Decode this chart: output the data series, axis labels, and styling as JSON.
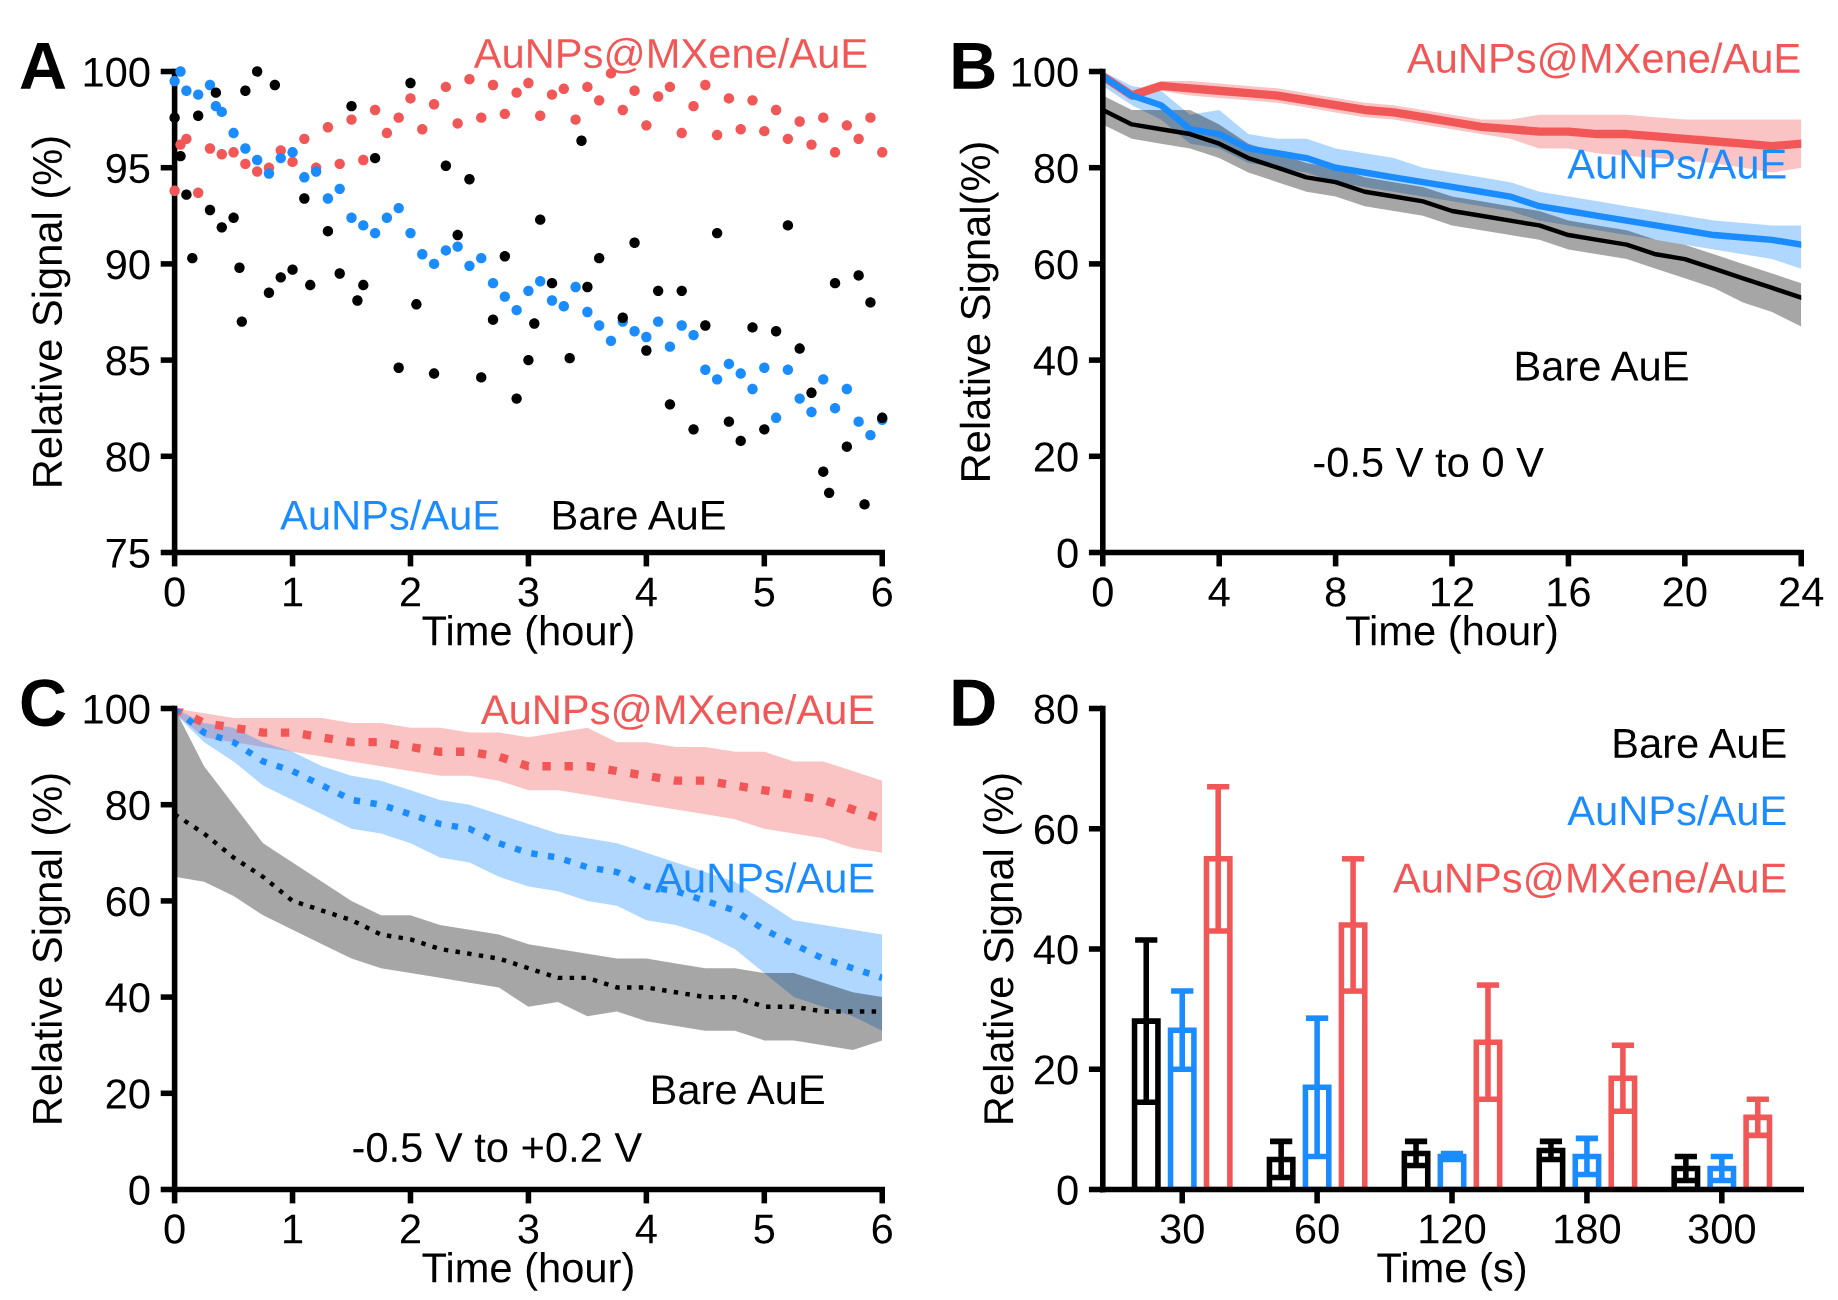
{
  "chart_data": [
    {
      "type": "scatter",
      "title": "A",
      "xlabel": "Time (hour)",
      "ylabel": "Relative Signal (%)",
      "xlim": [
        0,
        6
      ],
      "ylim": [
        75,
        100
      ],
      "xticks": [
        0,
        1,
        2,
        3,
        4,
        5,
        6
      ],
      "yticks": [
        75,
        80,
        85,
        90,
        95,
        100
      ],
      "marker": "circle",
      "grid": false,
      "series": [
        {
          "name": "AuNPs@MXene/AuE",
          "color": "#f25757",
          "x": [
            0.0,
            0.05,
            0.1,
            0.2,
            0.3,
            0.4,
            0.5,
            0.6,
            0.7,
            0.8,
            0.9,
            1.0,
            1.1,
            1.2,
            1.3,
            1.4,
            1.5,
            1.6,
            1.7,
            1.8,
            1.9,
            2.0,
            2.1,
            2.2,
            2.3,
            2.4,
            2.5,
            2.6,
            2.7,
            2.8,
            2.9,
            3.0,
            3.1,
            3.2,
            3.3,
            3.4,
            3.5,
            3.6,
            3.7,
            3.8,
            3.9,
            4.0,
            4.1,
            4.2,
            4.3,
            4.4,
            4.5,
            4.6,
            4.7,
            4.8,
            4.9,
            5.0,
            5.1,
            5.2,
            5.3,
            5.4,
            5.5,
            5.6,
            5.7,
            5.8,
            5.9,
            6.0
          ],
          "values": [
            93.8,
            96.2,
            96.5,
            93.7,
            96.0,
            95.7,
            95.8,
            95.2,
            94.8,
            95.0,
            95.9,
            95.3,
            96.5,
            95.0,
            97.1,
            95.2,
            97.5,
            95.4,
            98.0,
            96.8,
            97.6,
            98.6,
            97.0,
            98.3,
            99.2,
            97.3,
            99.6,
            97.6,
            99.3,
            97.8,
            98.9,
            99.4,
            97.7,
            98.8,
            99.1,
            97.5,
            99.2,
            98.5,
            99.9,
            98.0,
            99.0,
            97.2,
            98.7,
            99.2,
            96.8,
            98.2,
            99.3,
            96.7,
            98.6,
            97.0,
            98.5,
            96.9,
            98.0,
            96.5,
            97.4,
            96.2,
            97.6,
            95.8,
            97.2,
            96.5,
            97.6,
            95.8
          ]
        },
        {
          "name": "AuNPs/AuE",
          "color": "#1a8cff",
          "x": [
            0.0,
            0.05,
            0.1,
            0.2,
            0.3,
            0.35,
            0.4,
            0.5,
            0.6,
            0.7,
            0.8,
            0.9,
            1.0,
            1.1,
            1.2,
            1.3,
            1.4,
            1.5,
            1.6,
            1.7,
            1.8,
            1.9,
            2.0,
            2.1,
            2.2,
            2.3,
            2.4,
            2.5,
            2.6,
            2.7,
            2.8,
            2.9,
            3.0,
            3.1,
            3.2,
            3.3,
            3.4,
            3.5,
            3.6,
            3.7,
            3.8,
            3.9,
            4.0,
            4.1,
            4.2,
            4.3,
            4.4,
            4.5,
            4.6,
            4.7,
            4.8,
            4.9,
            5.0,
            5.1,
            5.2,
            5.3,
            5.4,
            5.5,
            5.6,
            5.7,
            5.8,
            5.9,
            6.0
          ],
          "values": [
            99.5,
            100.0,
            99.0,
            98.8,
            99.3,
            98.2,
            97.9,
            96.8,
            96.0,
            95.4,
            94.7,
            95.5,
            95.8,
            94.5,
            94.8,
            93.4,
            93.9,
            92.4,
            92.0,
            91.6,
            92.4,
            92.9,
            91.6,
            90.5,
            90.0,
            90.7,
            90.9,
            89.9,
            90.3,
            89.0,
            88.3,
            87.6,
            88.6,
            89.1,
            88.1,
            87.8,
            88.8,
            87.5,
            86.8,
            86.0,
            87.0,
            86.5,
            86.2,
            87.0,
            85.7,
            86.8,
            86.3,
            84.5,
            84.0,
            84.8,
            84.3,
            83.5,
            84.6,
            82.0,
            84.5,
            83.0,
            82.3,
            84.0,
            82.5,
            83.5,
            81.8,
            81.1,
            81.9
          ]
        },
        {
          "name": "Bare AuE",
          "color": "#000000",
          "x": [
            0.0,
            0.05,
            0.1,
            0.15,
            0.2,
            0.3,
            0.35,
            0.4,
            0.5,
            0.55,
            0.57,
            0.6,
            0.7,
            0.8,
            0.85,
            0.9,
            1.0,
            1.1,
            1.15,
            1.3,
            1.4,
            1.5,
            1.55,
            1.6,
            1.7,
            1.9,
            2.0,
            2.05,
            2.2,
            2.3,
            2.4,
            2.5,
            2.6,
            2.7,
            2.8,
            2.9,
            3.0,
            3.05,
            3.1,
            3.2,
            3.35,
            3.45,
            3.5,
            3.6,
            3.8,
            3.9,
            4.0,
            4.1,
            4.2,
            4.3,
            4.4,
            4.5,
            4.6,
            4.7,
            4.8,
            4.9,
            5.0,
            5.1,
            5.2,
            5.3,
            5.4,
            5.5,
            5.55,
            5.6,
            5.7,
            5.8,
            5.85,
            5.9,
            6.0
          ],
          "values": [
            97.6,
            95.6,
            93.6,
            90.3,
            97.7,
            92.8,
            98.9,
            91.9,
            92.4,
            89.8,
            87.0,
            99.0,
            100.0,
            88.5,
            99.3,
            89.3,
            89.7,
            93.4,
            88.9,
            91.7,
            89.5,
            98.2,
            88.1,
            88.9,
            95.5,
            84.6,
            99.4,
            87.9,
            84.3,
            95.1,
            91.5,
            94.4,
            84.1,
            87.1,
            90.4,
            83.0,
            85.0,
            86.9,
            92.3,
            89.0,
            85.1,
            96.4,
            88.8,
            90.3,
            87.2,
            91.1,
            85.5,
            88.6,
            82.7,
            88.6,
            81.4,
            86.8,
            91.6,
            81.8,
            80.8,
            86.7,
            81.4,
            86.5,
            92.0,
            85.6,
            83.3,
            79.2,
            78.1,
            89.0,
            80.5,
            89.4,
            77.5,
            88.0,
            82.0
          ]
        }
      ]
    },
    {
      "type": "line",
      "title": "B",
      "xlabel": "Time (hour)",
      "ylabel": "Relative Signal(%)",
      "xlim": [
        0,
        24
      ],
      "ylim": [
        0,
        100
      ],
      "xticks": [
        0,
        4,
        8,
        12,
        16,
        20,
        24
      ],
      "yticks": [
        0,
        20,
        40,
        60,
        80,
        100
      ],
      "line_style": "solid",
      "grid": false,
      "annotations": [
        "-0.5 V to 0 V"
      ],
      "x": [
        0,
        1,
        2,
        3,
        4,
        5,
        6,
        7,
        8,
        9,
        10,
        11,
        12,
        13,
        14,
        15,
        16,
        17,
        18,
        19,
        20,
        21,
        22,
        23,
        24
      ],
      "series": [
        {
          "name": "AuNPs@MXene/AuE",
          "color": "#f25757",
          "values": [
            99,
            95,
            97,
            96.5,
            96,
            95.5,
            95,
            94,
            93,
            92,
            91.5,
            90.5,
            89.5,
            88.5,
            88,
            87.5,
            87.5,
            87,
            87,
            86.5,
            86,
            85.5,
            85,
            84.5,
            85
          ],
          "lower": [
            98,
            94,
            96,
            95,
            94.5,
            94,
            93.5,
            92.5,
            91.5,
            90.5,
            90,
            89,
            88,
            87,
            86,
            84,
            84,
            83,
            82.5,
            82,
            81.5,
            81,
            80,
            79,
            80
          ],
          "upper": [
            100,
            96,
            98,
            98,
            97.5,
            97,
            96.5,
            95.5,
            94.5,
            93.5,
            93,
            92,
            91,
            90,
            90,
            91,
            91,
            91,
            91,
            90.5,
            90,
            90,
            90,
            90,
            90
          ]
        },
        {
          "name": "AuNPs/AuE",
          "color": "#1a8cff",
          "values": [
            99,
            95,
            93,
            88,
            87,
            84,
            83,
            82,
            80,
            79,
            78,
            77,
            76,
            75,
            74,
            72,
            71,
            70,
            69,
            68,
            67,
            66,
            65.5,
            65,
            64
          ],
          "lower": [
            97,
            93,
            90,
            85,
            84,
            81,
            80,
            79,
            77,
            76,
            75,
            74,
            73,
            72,
            71,
            69,
            68,
            67,
            66,
            65,
            64,
            63,
            62,
            61,
            59
          ],
          "upper": [
            100,
            97,
            96,
            91,
            92,
            87,
            86,
            86,
            84,
            83,
            82,
            80,
            79,
            78,
            77,
            75,
            74,
            73,
            72,
            71,
            70,
            69,
            68.5,
            68,
            68
          ]
        },
        {
          "name": "Bare AuE",
          "color": "#000000",
          "values": [
            92,
            89,
            88,
            87,
            85,
            82,
            80,
            78,
            77,
            75,
            74,
            73,
            71,
            70,
            69,
            68,
            66,
            65,
            64,
            62,
            61,
            59,
            57,
            55,
            53
          ],
          "lower": [
            89,
            86,
            85,
            84,
            82,
            79,
            77,
            75,
            74,
            72,
            71,
            70,
            68,
            67,
            66,
            65,
            63,
            62,
            61,
            59,
            57,
            55,
            52,
            50,
            47
          ],
          "upper": [
            95,
            92,
            92,
            92,
            89,
            85,
            83,
            81,
            80,
            78,
            77,
            76,
            74,
            73,
            72,
            71,
            69,
            68,
            67,
            65,
            64,
            62,
            60,
            58,
            56
          ]
        }
      ]
    },
    {
      "type": "line",
      "title": "C",
      "xlabel": "Time (hour)",
      "ylabel": "Relative Signal (%)",
      "xlim": [
        0,
        6
      ],
      "ylim": [
        0,
        100
      ],
      "xticks": [
        0,
        1,
        2,
        3,
        4,
        5,
        6
      ],
      "yticks": [
        0,
        20,
        40,
        60,
        80,
        100
      ],
      "line_style": "dotted",
      "grid": false,
      "annotations": [
        "-0.5 V to +0.2 V"
      ],
      "x": [
        0,
        0.25,
        0.5,
        0.75,
        1,
        1.25,
        1.5,
        1.75,
        2,
        2.25,
        2.5,
        2.75,
        3,
        3.25,
        3.5,
        3.75,
        4,
        4.25,
        4.5,
        4.75,
        5,
        5.25,
        5.5,
        5.75,
        6
      ],
      "series": [
        {
          "name": "AuNPs@MXene/AuE",
          "color": "#f25757",
          "values": [
            100,
            97,
            96,
            95,
            95,
            94,
            93,
            93,
            92,
            91,
            91,
            90,
            88,
            88,
            88,
            87,
            86,
            85,
            85,
            84,
            83,
            82,
            81,
            79,
            77
          ],
          "lower": [
            99,
            94,
            93,
            92,
            91,
            90,
            89,
            88,
            87,
            86,
            86,
            85,
            83,
            83,
            82,
            81,
            80,
            79,
            78,
            77,
            75,
            74,
            73,
            71,
            70
          ],
          "upper": [
            100,
            99,
            98,
            98,
            98,
            98,
            97,
            97,
            96,
            96,
            95,
            95,
            94,
            95,
            96,
            93,
            93,
            92,
            92,
            91,
            91,
            89,
            89,
            87,
            85
          ]
        },
        {
          "name": "AuNPs/AuE",
          "color": "#1a8cff",
          "values": [
            100,
            95,
            93,
            89,
            87,
            84,
            81,
            80,
            78,
            76,
            75,
            72,
            70,
            69,
            67,
            66,
            63,
            62,
            60,
            58,
            54,
            51,
            48,
            46,
            44
          ],
          "lower": [
            99,
            93,
            89,
            84,
            81,
            78,
            75,
            74,
            72,
            69,
            68,
            65,
            63,
            62,
            60,
            59,
            56,
            55,
            53,
            50,
            45,
            40,
            38,
            36,
            33
          ],
          "upper": [
            100,
            97,
            96,
            93,
            91,
            88,
            86,
            85,
            83,
            81,
            80,
            78,
            76,
            74,
            73,
            72,
            70,
            68,
            66,
            64,
            60,
            56,
            55,
            54,
            53
          ]
        },
        {
          "name": "Bare AuE",
          "color": "#000000",
          "values": [
            78,
            74,
            69,
            65,
            60,
            58,
            56,
            53,
            52,
            50,
            49,
            48,
            46,
            44,
            44,
            42,
            42,
            41,
            40,
            40,
            38,
            38,
            37,
            37,
            37
          ],
          "lower": [
            65,
            64,
            61,
            57,
            54,
            51,
            48,
            46,
            45,
            44,
            43,
            42,
            38,
            39,
            36,
            37,
            35,
            34,
            33,
            33,
            31,
            31,
            30,
            29,
            31
          ],
          "upper": [
            100,
            88,
            80,
            72,
            68,
            64,
            60,
            57,
            57,
            55,
            54,
            53,
            51,
            50,
            49,
            48,
            48,
            47,
            46,
            46,
            45,
            45,
            43,
            41,
            40
          ]
        }
      ]
    },
    {
      "type": "bar",
      "title": "D",
      "xlabel": "Time (s)",
      "ylabel": "Relative Signal (%)",
      "ylim": [
        0,
        80
      ],
      "yticks": [
        0,
        20,
        40,
        60,
        80
      ],
      "grid": false,
      "categories": [
        "30",
        "60",
        "120",
        "180",
        "300"
      ],
      "series": [
        {
          "name": "Bare AuE",
          "color": "#000000",
          "values": [
            28,
            5,
            6,
            6.5,
            3.5
          ],
          "errors": [
            13.5,
            3,
            2,
            1.5,
            2
          ]
        },
        {
          "name": "AuNPs/AuE",
          "color": "#1a8cff",
          "values": [
            26.5,
            17,
            5.5,
            5.5,
            3.5
          ],
          "errors": [
            6.5,
            11.5,
            0.5,
            3,
            2
          ]
        },
        {
          "name": "AuNPs@MXene/AuE",
          "color": "#f25757",
          "values": [
            55,
            44,
            24.5,
            18.5,
            12
          ],
          "errors": [
            12,
            11,
            9.5,
            5.5,
            3
          ]
        }
      ]
    }
  ]
}
